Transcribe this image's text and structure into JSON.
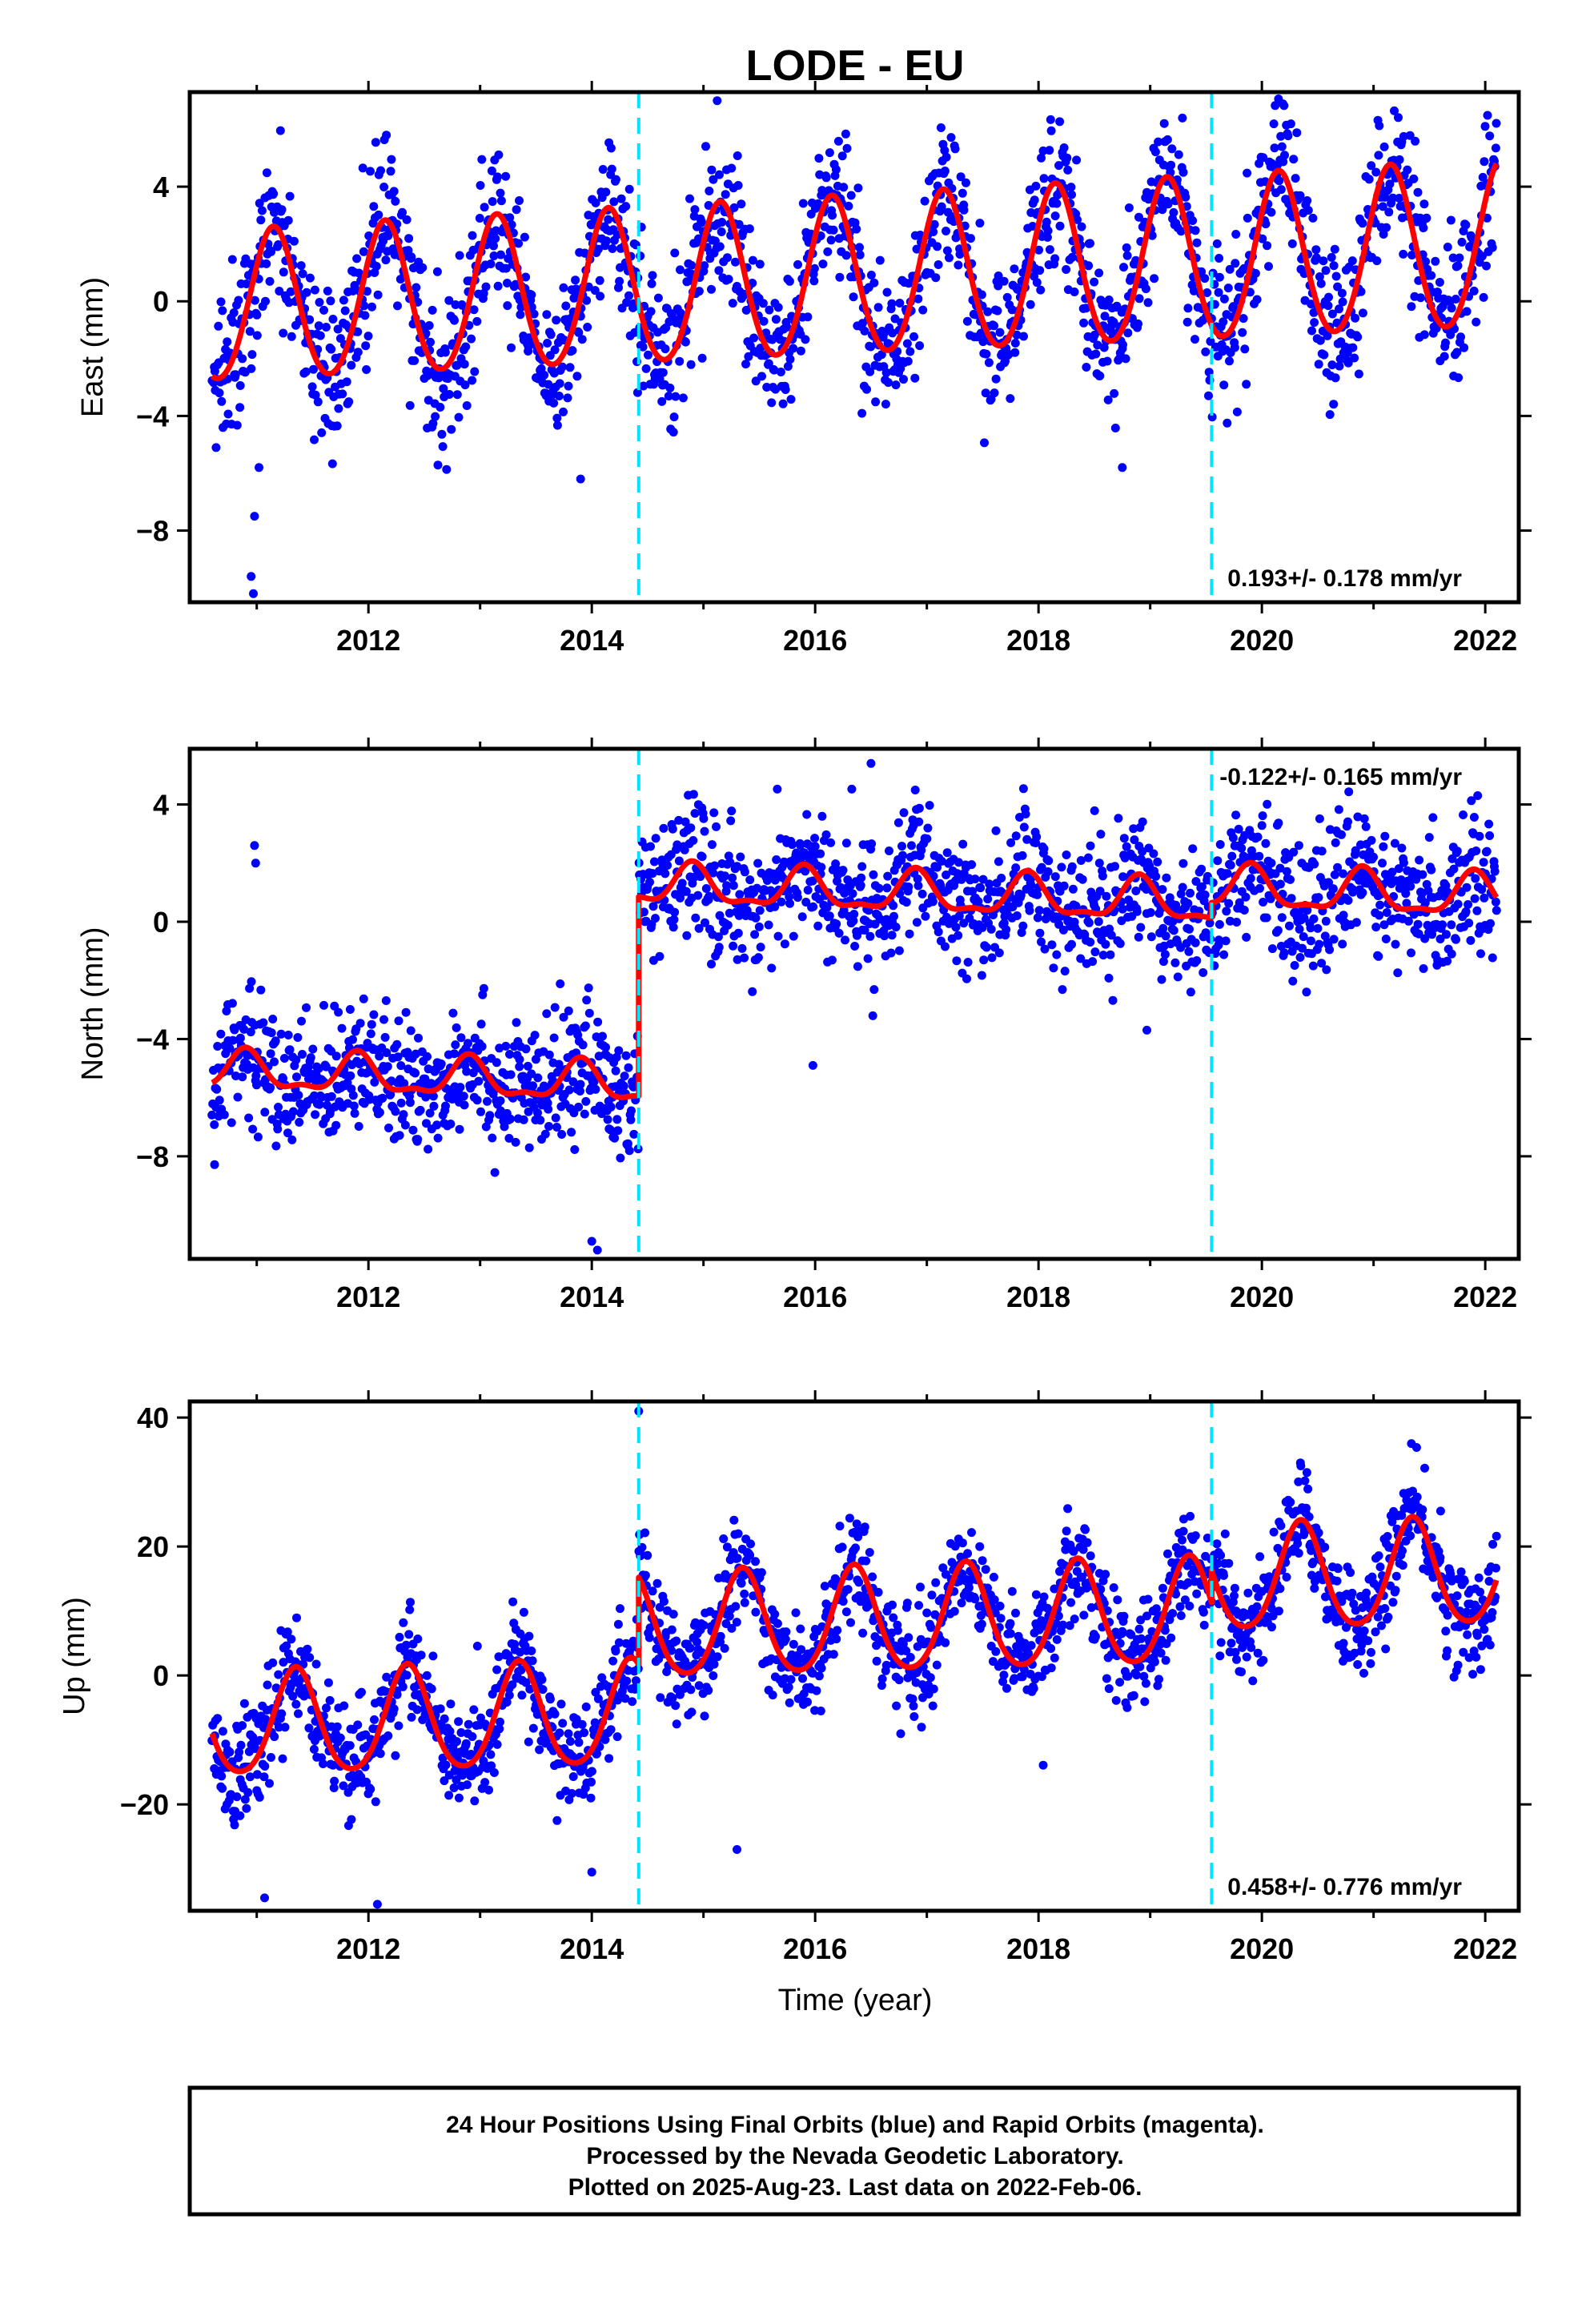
{
  "title": "LODE - EU",
  "colors": {
    "points": "#0000ff",
    "model": "#ff0000",
    "breaks": "#00e5ff",
    "frame": "#000000"
  },
  "chart_data": [
    {
      "type": "scatter",
      "ylabel": "East (mm)",
      "ylim": [
        -10.5,
        7.3
      ],
      "yticks": [
        -8,
        -4,
        0,
        4
      ],
      "xlim": [
        2010.4,
        2022.3
      ],
      "xticks": [
        2012,
        2014,
        2016,
        2018,
        2020,
        2022
      ],
      "breaks": [
        2014.42,
        2019.55
      ],
      "rate_label": "0.193+/- 0.178 mm/yr",
      "rate_position": "bottom-right",
      "model": {
        "intercept": -0.3,
        "trend": 0.19,
        "ann_start": 2.6,
        "ann_end": 2.9,
        "phase": 2011.15,
        "semi": 0.2,
        "offsets": []
      },
      "scatter": {
        "sigma": 1.3,
        "outliers": [
          [
            2010.95,
            -9.6
          ],
          [
            2010.97,
            -10.2
          ],
          [
            2010.98,
            -7.5
          ],
          [
            2011.02,
            -5.8
          ],
          [
            2013.9,
            -6.2
          ],
          [
            2018.75,
            -5.8
          ]
        ]
      }
    },
    {
      "type": "scatter",
      "ylabel": "North (mm)",
      "ylim": [
        -11.5,
        5.9
      ],
      "yticks": [
        -8,
        -4,
        0,
        4
      ],
      "xlim": [
        2010.4,
        2022.3
      ],
      "xticks": [
        2012,
        2014,
        2016,
        2018,
        2020,
        2022
      ],
      "breaks": [
        2014.42,
        2019.55
      ],
      "rate_label": "-0.122+/- 0.165 mm/yr",
      "rate_position": "top-right",
      "model": {
        "intercept": -5.1,
        "trend": -0.12,
        "ann_start": 0.6,
        "ann_end": 0.7,
        "phase": 2010.9,
        "semi": 0.25,
        "offsets": [
          [
            2014.42,
            6.8
          ],
          [
            2019.55,
            0.5
          ]
        ]
      },
      "scatter": {
        "sigma": 1.1,
        "outliers": [
          [
            2010.98,
            2.6
          ],
          [
            2010.99,
            2.0
          ],
          [
            2014.0,
            -10.9
          ],
          [
            2014.05,
            -11.2
          ],
          [
            2015.98,
            -4.9
          ],
          [
            2016.5,
            5.4
          ],
          [
            2018.97,
            -3.7
          ]
        ]
      }
    },
    {
      "type": "scatter",
      "ylabel": "Up (mm)",
      "ylim": [
        -36.5,
        42.5
      ],
      "yticks": [
        -20,
        0,
        20,
        40
      ],
      "xlim": [
        2010.4,
        2022.3
      ],
      "xticks": [
        2012,
        2014,
        2016,
        2018,
        2020,
        2022
      ],
      "breaks": [
        2014.42,
        2019.55
      ],
      "rate_label": "0.458+/- 0.776 mm/yr",
      "rate_position": "bottom-right",
      "model": {
        "intercept": -8.0,
        "trend": 0.46,
        "ann_start": 8.0,
        "ann_end": 8.2,
        "phase": 2010.35,
        "semi": 1.0,
        "offsets": [
          [
            2014.42,
            13.5
          ],
          [
            2019.55,
            5.0
          ]
        ]
      },
      "scatter": {
        "sigma": 4.0,
        "outliers": [
          [
            2014.42,
            41.0
          ],
          [
            2011.07,
            -34.5
          ],
          [
            2012.08,
            -35.5
          ],
          [
            2015.3,
            -27.0
          ],
          [
            2014.0,
            -30.5
          ],
          [
            2021.6,
            25.5
          ]
        ]
      }
    }
  ],
  "xlabel": "Time (year)",
  "footer": {
    "line1": "24 Hour Positions Using Final Orbits (blue) and Rapid Orbits (magenta).",
    "line2": "Processed by the Nevada Geodetic Laboratory.",
    "line3": "Plotted on 2025-Aug-23. Last data on 2022-Feb-06."
  }
}
